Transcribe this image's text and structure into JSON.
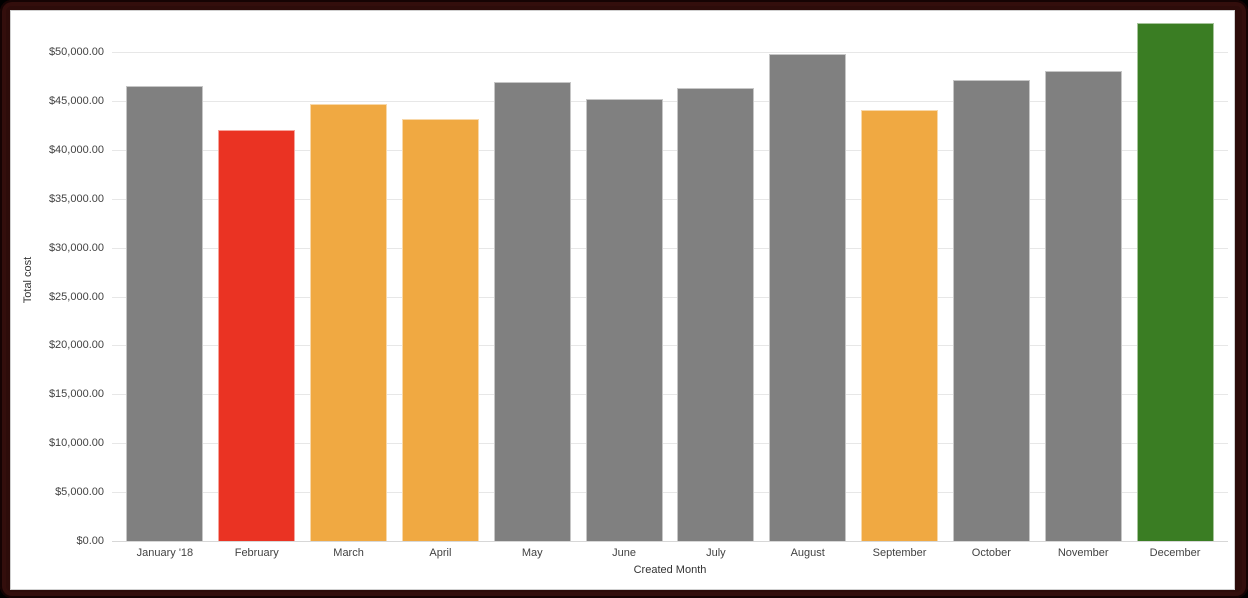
{
  "chart_data": {
    "type": "bar",
    "title": "",
    "xlabel": "Created Month",
    "ylabel": "Total cost",
    "categories": [
      "January '18",
      "February",
      "March",
      "April",
      "May",
      "June",
      "July",
      "August",
      "September",
      "October",
      "November",
      "December"
    ],
    "values": [
      46500,
      42000,
      44700,
      43100,
      46900,
      45200,
      46300,
      49800,
      44100,
      47100,
      48100,
      53000
    ],
    "bar_colors": [
      "#808080",
      "#EA3323",
      "#F0A942",
      "#F0A942",
      "#808080",
      "#808080",
      "#808080",
      "#808080",
      "#F0A942",
      "#808080",
      "#808080",
      "#3A7D23"
    ],
    "y_ticks": [
      "$0.00",
      "$5,000.00",
      "$10,000.00",
      "$15,000.00",
      "$20,000.00",
      "$25,000.00",
      "$30,000.00",
      "$35,000.00",
      "$40,000.00",
      "$45,000.00",
      "$50,000.00"
    ],
    "y_tick_step": 5000,
    "ylim": [
      0,
      54100
    ],
    "grid": true,
    "legend": "none",
    "colors": {
      "default_bar": "#808080",
      "negative": "#EA3323",
      "warning": "#F0A942",
      "positive": "#3A7D23",
      "gridline": "#e7e7e7",
      "frame": "#2d0c0a",
      "axis_text": "#424242"
    }
  }
}
